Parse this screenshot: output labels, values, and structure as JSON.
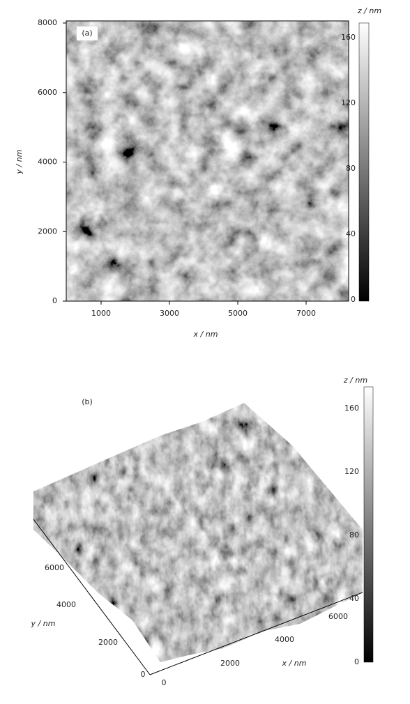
{
  "panels": [
    {
      "label": "(a)",
      "x_axis_label": "x / nm",
      "y_axis_label": "y / nm",
      "colorbar_label": "z / nm",
      "x_ticks": [
        "1000",
        "3000",
        "5000",
        "7000"
      ],
      "y_ticks": [
        "0",
        "2000",
        "4000",
        "6000",
        "8000"
      ],
      "colorbar_ticks": [
        "0",
        "40",
        "80",
        "120",
        "160"
      ]
    },
    {
      "label": "(b)",
      "x_axis_label": "x / nm",
      "y_axis_label": "y / nm",
      "colorbar_label": "z / nm",
      "x_ticks": [
        "0",
        "2000",
        "4000",
        "6000"
      ],
      "y_ticks": [
        "0",
        "2000",
        "4000",
        "6000"
      ],
      "colorbar_ticks": [
        "0",
        "40",
        "80",
        "120",
        "160"
      ]
    }
  ]
}
